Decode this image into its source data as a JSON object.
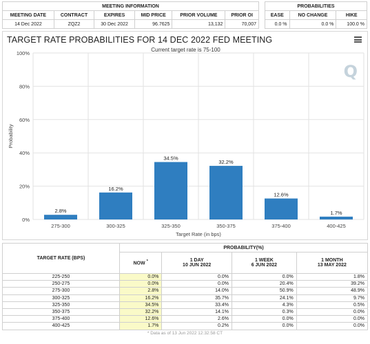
{
  "meeting_info": {
    "section_title": "MEETING INFORMATION",
    "headers": [
      "MEETING DATE",
      "CONTRACT",
      "EXPIRES",
      "MID PRICE",
      "PRIOR VOLUME",
      "PRIOR OI"
    ],
    "values": [
      "14 Dec 2022",
      "ZQZ2",
      "30 Dec 2022",
      "96.7625",
      "13,132",
      "70,007"
    ]
  },
  "probabilities": {
    "section_title": "PROBABILITIES",
    "headers": [
      "EASE",
      "NO CHANGE",
      "HIKE"
    ],
    "values": [
      "0.0 %",
      "0.0 %",
      "100.0 %"
    ]
  },
  "chart": {
    "title": "TARGET RATE PROBABILITIES FOR 14 DEC 2022 FED MEETING",
    "subtitle": "Current target rate is 75-100",
    "logo": "Q"
  },
  "chart_data": {
    "type": "bar",
    "title": "TARGET RATE PROBABILITIES FOR 14 DEC 2022 FED MEETING",
    "subtitle": "Current target rate is 75-100",
    "xlabel": "Target Rate (in bps)",
    "ylabel": "Probability",
    "ylim": [
      0,
      100
    ],
    "yticks": [
      "0%",
      "20%",
      "40%",
      "60%",
      "80%",
      "100%"
    ],
    "grid": true,
    "categories": [
      "275-300",
      "300-325",
      "325-350",
      "350-375",
      "375-400",
      "400-425"
    ],
    "values": [
      2.8,
      16.2,
      34.5,
      32.2,
      12.6,
      1.7
    ],
    "labels": [
      "2.8%",
      "16.2%",
      "34.5%",
      "32.2%",
      "12.6%",
      "1.7%"
    ],
    "color": "#2f7ec0"
  },
  "prob_table": {
    "col0": "TARGET RATE (BPS)",
    "group": "PROBABILITY(%)",
    "cols": [
      {
        "l1": "NOW",
        "l2": ""
      },
      {
        "l1": "1 DAY",
        "l2": "10 JUN 2022"
      },
      {
        "l1": "1 WEEK",
        "l2": "6 JUN 2022"
      },
      {
        "l1": "1 MONTH",
        "l2": "13 MAY 2022"
      }
    ],
    "now_marker": "*",
    "rows": [
      [
        "225-250",
        "0.0%",
        "0.0%",
        "0.0%",
        "1.8%"
      ],
      [
        "250-275",
        "0.0%",
        "0.0%",
        "20.4%",
        "39.2%"
      ],
      [
        "275-300",
        "2.8%",
        "14.0%",
        "50.9%",
        "48.9%"
      ],
      [
        "300-325",
        "16.2%",
        "35.7%",
        "24.1%",
        "9.7%"
      ],
      [
        "325-350",
        "34.5%",
        "33.4%",
        "4.3%",
        "0.5%"
      ],
      [
        "350-375",
        "32.2%",
        "14.1%",
        "0.3%",
        "0.0%"
      ],
      [
        "375-400",
        "12.6%",
        "2.6%",
        "0.0%",
        "0.0%"
      ],
      [
        "400-425",
        "1.7%",
        "0.2%",
        "0.0%",
        "0.0%"
      ]
    ],
    "footer": "* Data as of 13 Jun 2022 12:32:58 CT"
  }
}
